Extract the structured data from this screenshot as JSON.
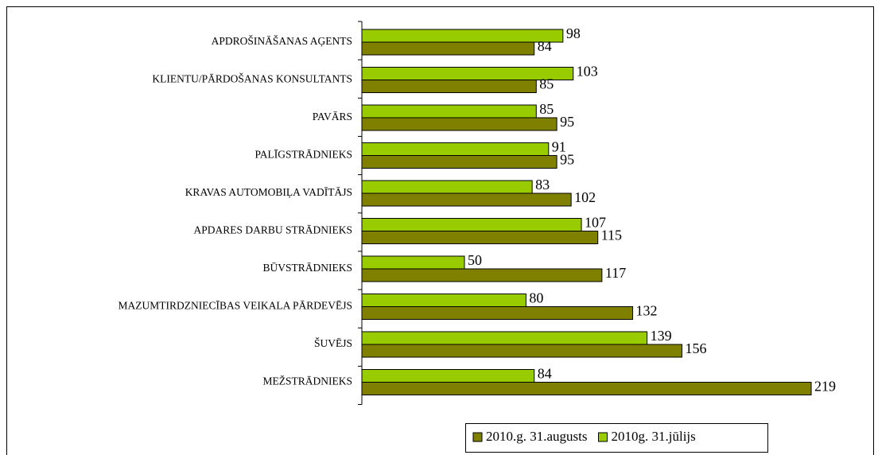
{
  "chart_data": {
    "type": "hbar",
    "categories": [
      "APDROŠINĀŠANAS AĢENTS",
      "KLIENTU/PĀRDOŠANAS KONSULTANTS",
      "PAVĀRS",
      "PALĪGSTRĀDNIEKS",
      "KRAVAS AUTOMOBIĻA VADĪTĀJS",
      "APDARES DARBU STRĀDNIEKS",
      "BŪVSTRĀDNIEKS",
      "MAZUMTIRDZNIECĪBAS VEIKALA PĀRDEVĒJS",
      "ŠUVĒJS",
      "MEŽSTRĀDNIEKS"
    ],
    "series": [
      {
        "name": "2010.g. 31.augusts",
        "color": "#808000",
        "values": [
          84,
          85,
          95,
          95,
          102,
          115,
          117,
          132,
          156,
          219
        ]
      },
      {
        "name": "2010g. 31.jūlijs",
        "color": "#99cc00",
        "values": [
          98,
          103,
          85,
          91,
          83,
          107,
          50,
          80,
          139,
          84
        ]
      }
    ],
    "legend": "bottom"
  }
}
